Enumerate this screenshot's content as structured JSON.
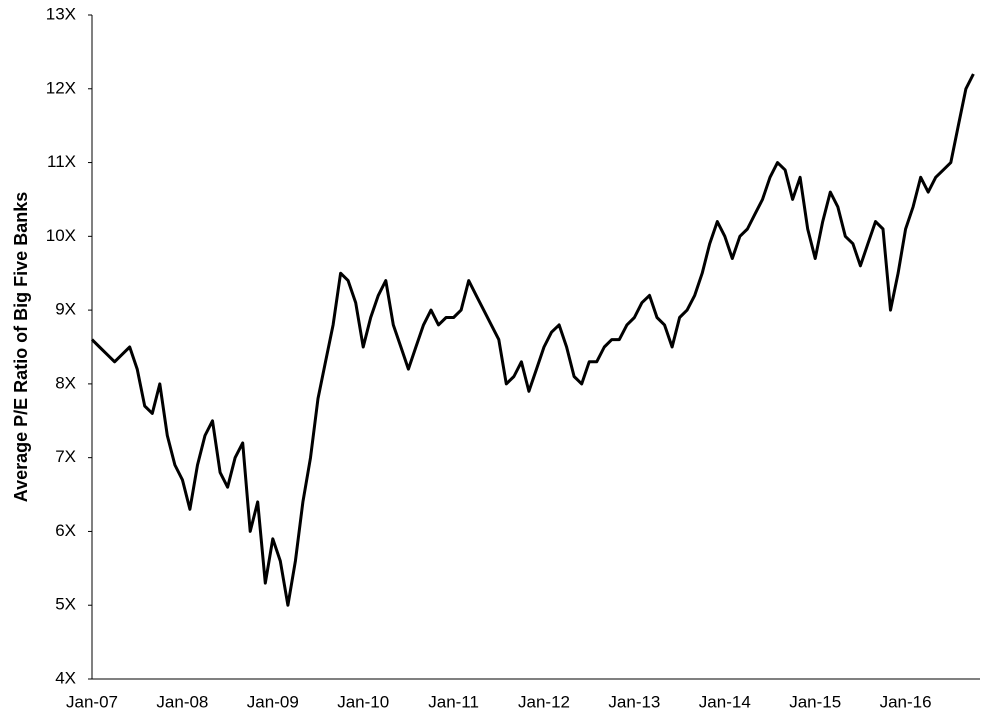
{
  "chart_data": {
    "type": "line",
    "y_label": "Average P/E Ratio of Big Five Banks",
    "categories": [
      "Jan-07",
      null,
      null,
      null,
      null,
      null,
      null,
      null,
      null,
      null,
      null,
      null,
      "Jan-08",
      null,
      null,
      null,
      null,
      null,
      null,
      null,
      null,
      null,
      null,
      null,
      "Jan-09",
      null,
      null,
      null,
      null,
      null,
      null,
      null,
      null,
      null,
      null,
      null,
      "Jan-10",
      null,
      null,
      null,
      null,
      null,
      null,
      null,
      null,
      null,
      null,
      null,
      "Jan-11",
      null,
      null,
      null,
      null,
      null,
      null,
      null,
      null,
      null,
      null,
      null,
      "Jan-12",
      null,
      null,
      null,
      null,
      null,
      null,
      null,
      null,
      null,
      null,
      null,
      "Jan-13",
      null,
      null,
      null,
      null,
      null,
      null,
      null,
      null,
      null,
      null,
      null,
      "Jan-14",
      null,
      null,
      null,
      null,
      null,
      null,
      null,
      null,
      null,
      null,
      null,
      "Jan-15",
      null,
      null,
      null,
      null,
      null,
      null,
      null,
      null,
      null,
      null,
      null,
      "Jan-16",
      null,
      null,
      null,
      null,
      null,
      null,
      null,
      null,
      null
    ],
    "series": [
      {
        "color": "#000000",
        "values": [
          8.6,
          8.5,
          8.4,
          8.3,
          8.4,
          8.5,
          8.2,
          7.7,
          7.6,
          8.0,
          7.3,
          6.9,
          6.7,
          6.3,
          6.9,
          7.3,
          7.5,
          6.8,
          6.6,
          7.0,
          7.2,
          6.0,
          6.4,
          5.3,
          5.9,
          5.6,
          5.0,
          5.6,
          6.4,
          7.0,
          7.8,
          8.3,
          8.8,
          9.5,
          9.4,
          9.1,
          8.5,
          8.9,
          9.2,
          9.4,
          8.8,
          8.5,
          8.2,
          8.5,
          8.8,
          9.0,
          8.8,
          8.9,
          8.9,
          9.0,
          9.4,
          9.2,
          9.0,
          8.8,
          8.6,
          8.0,
          8.1,
          8.3,
          7.9,
          8.2,
          8.5,
          8.7,
          8.8,
          8.5,
          8.1,
          8.0,
          8.3,
          8.3,
          8.5,
          8.6,
          8.6,
          8.8,
          8.9,
          9.1,
          9.2,
          8.9,
          8.8,
          8.5,
          8.9,
          9.0,
          9.2,
          9.5,
          9.9,
          10.2,
          10.0,
          9.7,
          10.0,
          10.1,
          10.3,
          10.5,
          10.8,
          11.0,
          10.9,
          10.5,
          10.8,
          10.1,
          9.7,
          10.2,
          10.6,
          10.4,
          10.0,
          9.9,
          9.6,
          9.9,
          10.2,
          10.1,
          9.0,
          9.5,
          10.1,
          10.4,
          10.8,
          10.6,
          10.8,
          10.9,
          11.0,
          11.5,
          12.0,
          12.2
        ]
      }
    ],
    "ylim": [
      4,
      13
    ],
    "yticks": [
      {
        "value": 4,
        "label": "4X"
      },
      {
        "value": 5,
        "label": "5X"
      },
      {
        "value": 6,
        "label": "6X"
      },
      {
        "value": 7,
        "label": "7X"
      },
      {
        "value": 8,
        "label": "8X"
      },
      {
        "value": 9,
        "label": "9X"
      },
      {
        "value": 10,
        "label": "10X"
      },
      {
        "value": 11,
        "label": "11X"
      },
      {
        "value": 12,
        "label": "12X"
      },
      {
        "value": 13,
        "label": "13X"
      }
    ],
    "grid": false
  }
}
